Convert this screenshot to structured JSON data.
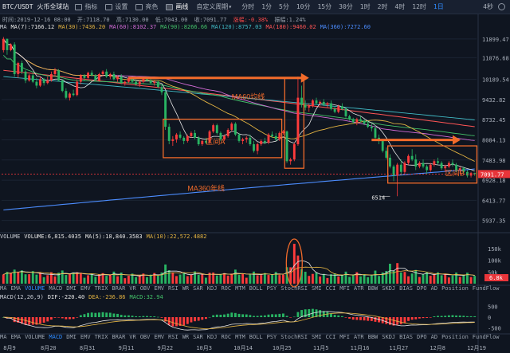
{
  "toolbar": {
    "symbol": "BTC/USDT 火币全球站",
    "indicators_label": "指标",
    "settings_label": "设置",
    "theme_label": "亮色",
    "draw_label": "画线",
    "custom_period_label": "自定义周期",
    "period_arrow": "▾",
    "periods": [
      "分时",
      "1分",
      "5分",
      "10分",
      "15分",
      "30分",
      "1时",
      "2时",
      "4时",
      "12时",
      "1日"
    ],
    "selected_period": "1日",
    "right_label": "4秒"
  },
  "stats": {
    "time": "时间:2019-12-16 08:00",
    "open": "开:7118.70",
    "high": "高:7130.00",
    "low": "低:7043.00",
    "close": "收:7091.77",
    "change": "涨幅:-0.38%",
    "amplitude": "振幅:1.24%"
  },
  "ma_legend": [
    {
      "text": "MA",
      "color": "#c8ccd4"
    },
    {
      "text": "MA(7):7166.12",
      "color": "#e6e6e6"
    },
    {
      "text": "MA(30):7436.20",
      "color": "#e3b341"
    },
    {
      "text": "MA(60):8102.37",
      "color": "#d26bd6"
    },
    {
      "text": "MA(90):8266.66",
      "color": "#44c36a"
    },
    {
      "text": "MA(120):8757.03",
      "color": "#40b9c4"
    },
    {
      "text": "MA(180):9460.02",
      "color": "#ff5555"
    },
    {
      "text": "MA(360):7272.60",
      "color": "#4c8dff"
    }
  ],
  "vol_legend": [
    {
      "text": "VOLUME",
      "color": "#c8ccd4"
    },
    {
      "text": "VOLUME:6,815.4035",
      "color": "#e6e6e6"
    },
    {
      "text": "MA(5):18,840.3583",
      "color": "#e6e6e6"
    },
    {
      "text": "MA(10):22,572.4882",
      "color": "#e3b341"
    }
  ],
  "macd_legend": [
    {
      "text": "MACD(12,26,9)",
      "color": "#c8ccd4"
    },
    {
      "text": "DIF:-220.40",
      "color": "#e6e6e6"
    },
    {
      "text": "DEA:-236.86",
      "color": "#e3b341"
    },
    {
      "text": "MACD:32.94",
      "color": "#44c36a"
    }
  ],
  "indicator_tabs": [
    "MA",
    "EMA",
    "VOLUME",
    "MACD",
    "DMI",
    "EMV",
    "TRIX",
    "BRAR",
    "VR",
    "OBV",
    "EMV",
    "RSI",
    "WR",
    "SAR",
    "KDJ",
    "ROC",
    "MTM",
    "BOLL",
    "PSY",
    "StochRSI",
    "SMI",
    "CCI",
    "MFI",
    "ATR",
    "BBW",
    "SKDJ",
    "BIAS",
    "DPO",
    "AD",
    "Position",
    "FundFlow"
  ],
  "selected_tab": "VOLUME",
  "colors": {
    "up": "#ff3b3b",
    "down": "#28b463",
    "annotation": "#f26b2a",
    "last_price_bg": "#e8353a",
    "vol_last_bg": "#e8353a"
  },
  "annotations": {
    "ma60": "MA60均线",
    "range_a": "区间A",
    "range_b": "区间B",
    "ma360": "MA360年线",
    "low_marker": "6514"
  },
  "last_price_label": "7091.77",
  "vol_last_label": "6.8k",
  "chart_data": {
    "type": "candlestick",
    "title": "BTC/USDT 火币全球站",
    "price_axis": {
      "ticks": [
        "11899.47",
        "11076.68",
        "10189.54",
        "9432.82",
        "8732.45",
        "8084.13",
        "7483.98",
        "6928.18",
        "6413.77",
        "5937.35"
      ],
      "scale": "log"
    },
    "x_axis": {
      "ticks": [
        "8月9",
        "8月20",
        "8月31",
        "9月11",
        "9月22",
        "10月3",
        "10月14",
        "10月25",
        "11月5",
        "11月16",
        "11月27",
        "12月8",
        "12月19"
      ]
    },
    "volume_axis": {
      "ticks": [
        "150k",
        "100k",
        "50k"
      ]
    },
    "macd_axis": {
      "ticks": [
        "500",
        "0",
        "-500"
      ]
    },
    "candles": [
      {
        "o": 11400,
        "h": 11990,
        "l": 11300,
        "c": 11900
      },
      {
        "o": 11900,
        "h": 11920,
        "l": 11200,
        "c": 11400
      },
      {
        "o": 11400,
        "h": 11700,
        "l": 11350,
        "c": 11650
      },
      {
        "o": 11650,
        "h": 11750,
        "l": 10300,
        "c": 10400
      },
      {
        "o": 10400,
        "h": 10900,
        "l": 10250,
        "c": 10850
      },
      {
        "o": 10850,
        "h": 10950,
        "l": 10400,
        "c": 10500
      },
      {
        "o": 10500,
        "h": 10550,
        "l": 10050,
        "c": 10150
      },
      {
        "o": 10150,
        "h": 10400,
        "l": 10100,
        "c": 10350
      },
      {
        "o": 10350,
        "h": 10450,
        "l": 10050,
        "c": 10100
      },
      {
        "o": 10100,
        "h": 10250,
        "l": 9850,
        "c": 9950
      },
      {
        "o": 9950,
        "h": 10300,
        "l": 9900,
        "c": 10200
      },
      {
        "o": 10200,
        "h": 10250,
        "l": 9950,
        "c": 10050
      },
      {
        "o": 10050,
        "h": 10300,
        "l": 10000,
        "c": 10150
      },
      {
        "o": 10150,
        "h": 10500,
        "l": 10100,
        "c": 10400
      },
      {
        "o": 10400,
        "h": 10650,
        "l": 10300,
        "c": 10550
      },
      {
        "o": 10550,
        "h": 10600,
        "l": 10100,
        "c": 10150
      },
      {
        "o": 10150,
        "h": 10200,
        "l": 9700,
        "c": 9750
      },
      {
        "o": 9750,
        "h": 9850,
        "l": 9450,
        "c": 9500
      },
      {
        "o": 9500,
        "h": 9700,
        "l": 9400,
        "c": 9650
      },
      {
        "o": 9650,
        "h": 9800,
        "l": 9550,
        "c": 9600
      },
      {
        "o": 9600,
        "h": 10200,
        "l": 9550,
        "c": 10100
      },
      {
        "o": 10100,
        "h": 10400,
        "l": 10000,
        "c": 10350
      },
      {
        "o": 10350,
        "h": 10400,
        "l": 10150,
        "c": 10250
      },
      {
        "o": 10250,
        "h": 10500,
        "l": 10200,
        "c": 10450
      },
      {
        "o": 10450,
        "h": 10550,
        "l": 10300,
        "c": 10350
      },
      {
        "o": 10350,
        "h": 10400,
        "l": 10100,
        "c": 10150
      },
      {
        "o": 10150,
        "h": 10450,
        "l": 10100,
        "c": 10400
      },
      {
        "o": 10400,
        "h": 10550,
        "l": 10300,
        "c": 10500
      },
      {
        "o": 10500,
        "h": 10600,
        "l": 10250,
        "c": 10300
      },
      {
        "o": 10300,
        "h": 10450,
        "l": 10200,
        "c": 10400
      },
      {
        "o": 10400,
        "h": 10500,
        "l": 10150,
        "c": 10200
      },
      {
        "o": 10200,
        "h": 10350,
        "l": 10100,
        "c": 10300
      },
      {
        "o": 10300,
        "h": 10400,
        "l": 10000,
        "c": 10050
      },
      {
        "o": 10050,
        "h": 10150,
        "l": 9950,
        "c": 10100
      },
      {
        "o": 10100,
        "h": 10300,
        "l": 10050,
        "c": 10250
      },
      {
        "o": 10250,
        "h": 10300,
        "l": 10050,
        "c": 10100
      },
      {
        "o": 10100,
        "h": 10200,
        "l": 9950,
        "c": 10000
      },
      {
        "o": 10000,
        "h": 10150,
        "l": 9900,
        "c": 10100
      },
      {
        "o": 10100,
        "h": 10250,
        "l": 10050,
        "c": 10200
      },
      {
        "o": 10200,
        "h": 10300,
        "l": 10100,
        "c": 10150
      },
      {
        "o": 10150,
        "h": 10250,
        "l": 10000,
        "c": 10050
      },
      {
        "o": 10050,
        "h": 10150,
        "l": 9950,
        "c": 10100
      },
      {
        "o": 10100,
        "h": 10150,
        "l": 9850,
        "c": 9900
      },
      {
        "o": 9900,
        "h": 10000,
        "l": 9600,
        "c": 9700
      },
      {
        "o": 9700,
        "h": 9750,
        "l": 8400,
        "c": 8500
      },
      {
        "o": 8500,
        "h": 8600,
        "l": 7950,
        "c": 8050
      },
      {
        "o": 8050,
        "h": 8200,
        "l": 7900,
        "c": 8100
      },
      {
        "o": 8100,
        "h": 8300,
        "l": 8000,
        "c": 8250
      },
      {
        "o": 8250,
        "h": 8350,
        "l": 8100,
        "c": 8150
      },
      {
        "o": 8150,
        "h": 8200,
        "l": 7950,
        "c": 8050
      },
      {
        "o": 8050,
        "h": 8250,
        "l": 8000,
        "c": 8200
      },
      {
        "o": 8200,
        "h": 8350,
        "l": 8150,
        "c": 8300
      },
      {
        "o": 8300,
        "h": 8400,
        "l": 8100,
        "c": 8150
      },
      {
        "o": 8150,
        "h": 8200,
        "l": 7900,
        "c": 7950
      },
      {
        "o": 7950,
        "h": 8100,
        "l": 7900,
        "c": 8050
      },
      {
        "o": 8050,
        "h": 8150,
        "l": 7950,
        "c": 8000
      },
      {
        "o": 8000,
        "h": 8400,
        "l": 7950,
        "c": 8350
      },
      {
        "o": 8350,
        "h": 8600,
        "l": 8300,
        "c": 8550
      },
      {
        "o": 8550,
        "h": 8600,
        "l": 8250,
        "c": 8300
      },
      {
        "o": 8300,
        "h": 8350,
        "l": 8050,
        "c": 8100
      },
      {
        "o": 8100,
        "h": 8250,
        "l": 8050,
        "c": 8200
      },
      {
        "o": 8200,
        "h": 8450,
        "l": 8150,
        "c": 8400
      },
      {
        "o": 8400,
        "h": 8650,
        "l": 8350,
        "c": 8600
      },
      {
        "o": 8600,
        "h": 8650,
        "l": 8200,
        "c": 8250
      },
      {
        "o": 8250,
        "h": 8300,
        "l": 8000,
        "c": 8050
      },
      {
        "o": 8050,
        "h": 8150,
        "l": 7950,
        "c": 8100
      },
      {
        "o": 8100,
        "h": 8200,
        "l": 8000,
        "c": 8150
      },
      {
        "o": 8150,
        "h": 8250,
        "l": 7900,
        "c": 7950
      },
      {
        "o": 7950,
        "h": 8050,
        "l": 7700,
        "c": 7750
      },
      {
        "o": 7750,
        "h": 8000,
        "l": 7650,
        "c": 7950
      },
      {
        "o": 7950,
        "h": 8100,
        "l": 7900,
        "c": 8050
      },
      {
        "o": 8050,
        "h": 8150,
        "l": 7950,
        "c": 8000
      },
      {
        "o": 8000,
        "h": 8300,
        "l": 7950,
        "c": 8250
      },
      {
        "o": 8250,
        "h": 8350,
        "l": 8150,
        "c": 8200
      },
      {
        "o": 8200,
        "h": 8300,
        "l": 8050,
        "c": 8100
      },
      {
        "o": 8100,
        "h": 8350,
        "l": 8050,
        "c": 8300
      },
      {
        "o": 8300,
        "h": 8400,
        "l": 8250,
        "c": 8350
      },
      {
        "o": 8350,
        "h": 8380,
        "l": 7400,
        "c": 7450
      },
      {
        "o": 7450,
        "h": 7550,
        "l": 7350,
        "c": 7500
      },
      {
        "o": 7500,
        "h": 8000,
        "l": 7450,
        "c": 7950
      },
      {
        "o": 7950,
        "h": 10300,
        "l": 7900,
        "c": 9500
      },
      {
        "o": 9500,
        "h": 9950,
        "l": 9150,
        "c": 9250
      },
      {
        "o": 9250,
        "h": 9400,
        "l": 9050,
        "c": 9150
      },
      {
        "o": 9150,
        "h": 9300,
        "l": 9000,
        "c": 9200
      },
      {
        "o": 9200,
        "h": 9450,
        "l": 9150,
        "c": 9400
      },
      {
        "o": 9400,
        "h": 9500,
        "l": 9250,
        "c": 9300
      },
      {
        "o": 9300,
        "h": 9400,
        "l": 9200,
        "c": 9350
      },
      {
        "o": 9350,
        "h": 9450,
        "l": 9200,
        "c": 9250
      },
      {
        "o": 9250,
        "h": 9350,
        "l": 9150,
        "c": 9300
      },
      {
        "o": 9300,
        "h": 9400,
        "l": 9050,
        "c": 9100
      },
      {
        "o": 9100,
        "h": 9200,
        "l": 8950,
        "c": 9000
      },
      {
        "o": 9000,
        "h": 9250,
        "l": 8950,
        "c": 9200
      },
      {
        "o": 9200,
        "h": 9300,
        "l": 9050,
        "c": 9100
      },
      {
        "o": 9100,
        "h": 9150,
        "l": 8800,
        "c": 8850
      },
      {
        "o": 8850,
        "h": 8900,
        "l": 8700,
        "c": 8750
      },
      {
        "o": 8750,
        "h": 8800,
        "l": 8600,
        "c": 8650
      },
      {
        "o": 8650,
        "h": 8800,
        "l": 8550,
        "c": 8750
      },
      {
        "o": 8750,
        "h": 8850,
        "l": 8650,
        "c": 8700
      },
      {
        "o": 8700,
        "h": 8750,
        "l": 8550,
        "c": 8600
      },
      {
        "o": 8600,
        "h": 8700,
        "l": 8450,
        "c": 8500
      },
      {
        "o": 8500,
        "h": 8600,
        "l": 8350,
        "c": 8450
      },
      {
        "o": 8450,
        "h": 8550,
        "l": 8100,
        "c": 8150
      },
      {
        "o": 8150,
        "h": 8250,
        "l": 7950,
        "c": 8050
      },
      {
        "o": 8050,
        "h": 8100,
        "l": 7700,
        "c": 7750
      },
      {
        "o": 7750,
        "h": 7850,
        "l": 7500,
        "c": 7550
      },
      {
        "o": 7550,
        "h": 7650,
        "l": 7250,
        "c": 7300
      },
      {
        "o": 7300,
        "h": 7350,
        "l": 6900,
        "c": 7050
      },
      {
        "o": 7050,
        "h": 7400,
        "l": 6514,
        "c": 7350
      },
      {
        "o": 7350,
        "h": 7500,
        "l": 7050,
        "c": 7150
      },
      {
        "o": 7150,
        "h": 7450,
        "l": 7100,
        "c": 7400
      },
      {
        "o": 7400,
        "h": 7650,
        "l": 7350,
        "c": 7600
      },
      {
        "o": 7600,
        "h": 7800,
        "l": 7450,
        "c": 7500
      },
      {
        "o": 7500,
        "h": 7650,
        "l": 7200,
        "c": 7300
      },
      {
        "o": 7300,
        "h": 7450,
        "l": 7250,
        "c": 7400
      },
      {
        "o": 7400,
        "h": 7500,
        "l": 7250,
        "c": 7300
      },
      {
        "o": 7300,
        "h": 7350,
        "l": 7100,
        "c": 7200
      },
      {
        "o": 7200,
        "h": 7400,
        "l": 7150,
        "c": 7350
      },
      {
        "o": 7350,
        "h": 7500,
        "l": 7300,
        "c": 7450
      },
      {
        "o": 7450,
        "h": 7550,
        "l": 7350,
        "c": 7400
      },
      {
        "o": 7400,
        "h": 7450,
        "l": 7200,
        "c": 7250
      },
      {
        "o": 7250,
        "h": 7350,
        "l": 7150,
        "c": 7300
      },
      {
        "o": 7300,
        "h": 7450,
        "l": 7250,
        "c": 7400
      },
      {
        "o": 7400,
        "h": 7500,
        "l": 7300,
        "c": 7350
      },
      {
        "o": 7350,
        "h": 7400,
        "l": 7150,
        "c": 7200
      },
      {
        "o": 7200,
        "h": 7300,
        "l": 7100,
        "c": 7250
      },
      {
        "o": 7250,
        "h": 7300,
        "l": 7100,
        "c": 7150
      },
      {
        "o": 7150,
        "h": 7200,
        "l": 7000,
        "c": 7050
      },
      {
        "o": 7050,
        "h": 7150,
        "l": 7000,
        "c": 7118.7
      },
      {
        "o": 7118.7,
        "h": 7130,
        "l": 7043,
        "c": 7091.77
      }
    ]
  }
}
